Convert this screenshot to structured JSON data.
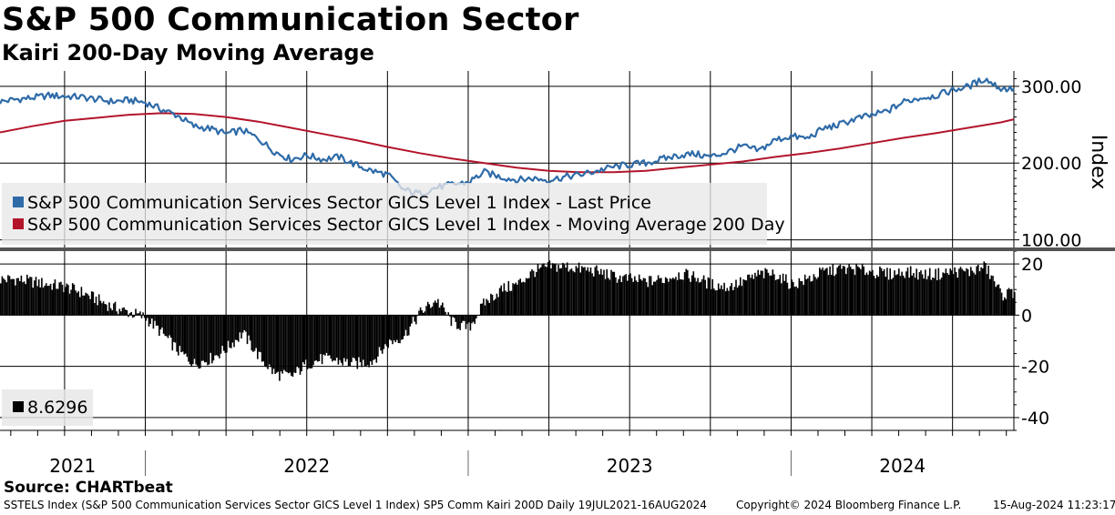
{
  "header": {
    "title": "S&P 500 Communication Sector",
    "subtitle": "Kairi 200-Day Moving Average"
  },
  "footer": {
    "source": "Source: CHARTbeat",
    "description": "SSTELS Index (S&P 500 Communication Services Sector GICS Level 1 Index) SP5 Comm Kairi 200D  Daily 19JUL2021-16AUG2024",
    "copyright": "Copyright© 2024 Bloomberg Finance L.P.",
    "timestamp": "15-Aug-2024 11:23:17"
  },
  "colors": {
    "price": "#2e6ba8",
    "moving_average": "#b3152b",
    "kairi": "#000000"
  },
  "chart_data": [
    {
      "type": "line",
      "panel": "upper",
      "ylabel": "Index",
      "ylim": [
        90,
        320
      ],
      "yticks": [
        100,
        200,
        300
      ],
      "ytick_labels": [
        "100.00",
        "200.00",
        "300.00"
      ],
      "x_range": [
        2021.55,
        2024.69
      ],
      "legend": [
        "S&P 500 Communication Services Sector GICS Level 1 Index - Last Price",
        "S&P 500 Communication Services Sector GICS Level 1 Index - Moving Average 200 Day"
      ],
      "series": [
        {
          "name": "S&P 500 Communication Services Sector GICS Level 1 Index - Last Price",
          "color": "#2e6ba8",
          "x": [
            2021.55,
            2021.6,
            2021.65,
            2021.7,
            2021.75,
            2021.8,
            2021.85,
            2021.9,
            2021.95,
            2022.0,
            2022.05,
            2022.1,
            2022.15,
            2022.2,
            2022.25,
            2022.3,
            2022.35,
            2022.4,
            2022.45,
            2022.5,
            2022.55,
            2022.6,
            2022.65,
            2022.7,
            2022.75,
            2022.8,
            2022.85,
            2022.9,
            2022.95,
            2023.0,
            2023.05,
            2023.1,
            2023.15,
            2023.2,
            2023.25,
            2023.3,
            2023.35,
            2023.4,
            2023.45,
            2023.5,
            2023.55,
            2023.6,
            2023.65,
            2023.7,
            2023.75,
            2023.8,
            2023.85,
            2023.9,
            2023.95,
            2024.0,
            2024.05,
            2024.1,
            2024.15,
            2024.2,
            2024.25,
            2024.3,
            2024.35,
            2024.4,
            2024.45,
            2024.5,
            2024.55,
            2024.6,
            2024.65,
            2024.69
          ],
          "y": [
            280,
            283,
            285,
            288,
            287,
            286,
            283,
            280,
            282,
            279,
            270,
            262,
            248,
            245,
            238,
            243,
            232,
            215,
            205,
            210,
            205,
            208,
            198,
            190,
            185,
            165,
            160,
            168,
            172,
            175,
            188,
            182,
            178,
            180,
            178,
            182,
            185,
            190,
            195,
            198,
            200,
            205,
            210,
            212,
            208,
            214,
            222,
            216,
            230,
            235,
            232,
            245,
            250,
            258,
            262,
            268,
            280,
            285,
            288,
            295,
            300,
            310,
            297,
            297
          ]
        },
        {
          "name": "S&P 500 Communication Services Sector GICS Level 1 Index - Moving Average 200 Day",
          "color": "#b3152b",
          "x": [
            2021.55,
            2021.65,
            2021.75,
            2021.85,
            2021.95,
            2022.05,
            2022.15,
            2022.25,
            2022.35,
            2022.45,
            2022.55,
            2022.65,
            2022.75,
            2022.85,
            2022.95,
            2023.05,
            2023.15,
            2023.25,
            2023.35,
            2023.45,
            2023.55,
            2023.65,
            2023.75,
            2023.85,
            2023.95,
            2024.05,
            2024.15,
            2024.25,
            2024.35,
            2024.45,
            2024.55,
            2024.65,
            2024.69
          ],
          "y": [
            240,
            248,
            255,
            259,
            263,
            265,
            264,
            260,
            254,
            246,
            238,
            230,
            221,
            213,
            206,
            200,
            194,
            190,
            188,
            188,
            190,
            194,
            198,
            202,
            208,
            213,
            219,
            226,
            233,
            239,
            246,
            253,
            257
          ]
        }
      ]
    },
    {
      "type": "bar",
      "panel": "lower",
      "title": "Kairi 200-Day",
      "ylim": [
        -45,
        25
      ],
      "yticks": [
        -40,
        -20,
        0,
        20
      ],
      "ytick_labels": [
        "-40",
        "-20",
        "0",
        "20"
      ],
      "last_value": "8.6296",
      "x": [
        2021.55,
        2021.6,
        2021.65,
        2021.7,
        2021.75,
        2021.8,
        2021.85,
        2021.9,
        2021.95,
        2022.0,
        2022.05,
        2022.1,
        2022.15,
        2022.2,
        2022.25,
        2022.3,
        2022.35,
        2022.4,
        2022.45,
        2022.5,
        2022.55,
        2022.6,
        2022.65,
        2022.7,
        2022.75,
        2022.8,
        2022.85,
        2022.9,
        2022.95,
        2023.0,
        2023.05,
        2023.1,
        2023.15,
        2023.2,
        2023.25,
        2023.3,
        2023.35,
        2023.4,
        2023.45,
        2023.5,
        2023.55,
        2023.6,
        2023.65,
        2023.7,
        2023.75,
        2023.8,
        2023.85,
        2023.9,
        2023.95,
        2024.0,
        2024.05,
        2024.1,
        2024.15,
        2024.2,
        2024.25,
        2024.3,
        2024.35,
        2024.4,
        2024.45,
        2024.5,
        2024.55,
        2024.6,
        2024.65,
        2024.69
      ],
      "values": [
        14,
        14,
        13,
        12,
        11,
        9,
        6,
        3,
        1,
        -1,
        -7,
        -14,
        -19,
        -17,
        -13,
        -7,
        -16,
        -23,
        -24,
        -19,
        -17,
        -18,
        -19,
        -18,
        -11,
        -8,
        1,
        6,
        -3,
        -5,
        5,
        10,
        12,
        17,
        19,
        19,
        18,
        17,
        15,
        14,
        13,
        14,
        16,
        15,
        12,
        11,
        13,
        16,
        16,
        12,
        14,
        17,
        18,
        18,
        17,
        16,
        17,
        16,
        16,
        17,
        17,
        19,
        8,
        9
      ]
    }
  ],
  "x_axis": {
    "year_labels": [
      "2021",
      "2022",
      "2023",
      "2024"
    ]
  }
}
